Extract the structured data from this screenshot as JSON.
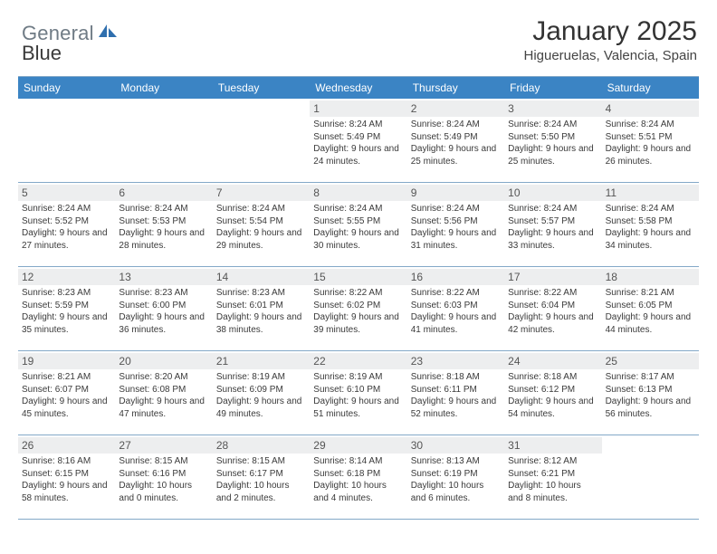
{
  "logo": {
    "part1": "General",
    "part2": "Blue"
  },
  "title": {
    "month": "January 2025",
    "location": "Higueruelas, Valencia, Spain"
  },
  "colors": {
    "header_blue": "#3b84c4",
    "divider": "#83a8c8",
    "daynum_bg": "#edeeef",
    "page_bg": "#ffffff",
    "logo_gray": "#6f7b85",
    "text": "#3a3a3a"
  },
  "calendar": {
    "day_names": [
      "Sunday",
      "Monday",
      "Tuesday",
      "Wednesday",
      "Thursday",
      "Friday",
      "Saturday"
    ],
    "first_weekday_index": 3,
    "days": [
      {
        "n": 1,
        "sunrise": "8:24 AM",
        "sunset": "5:49 PM",
        "daylight": "9 hours and 24 minutes."
      },
      {
        "n": 2,
        "sunrise": "8:24 AM",
        "sunset": "5:49 PM",
        "daylight": "9 hours and 25 minutes."
      },
      {
        "n": 3,
        "sunrise": "8:24 AM",
        "sunset": "5:50 PM",
        "daylight": "9 hours and 25 minutes."
      },
      {
        "n": 4,
        "sunrise": "8:24 AM",
        "sunset": "5:51 PM",
        "daylight": "9 hours and 26 minutes."
      },
      {
        "n": 5,
        "sunrise": "8:24 AM",
        "sunset": "5:52 PM",
        "daylight": "9 hours and 27 minutes."
      },
      {
        "n": 6,
        "sunrise": "8:24 AM",
        "sunset": "5:53 PM",
        "daylight": "9 hours and 28 minutes."
      },
      {
        "n": 7,
        "sunrise": "8:24 AM",
        "sunset": "5:54 PM",
        "daylight": "9 hours and 29 minutes."
      },
      {
        "n": 8,
        "sunrise": "8:24 AM",
        "sunset": "5:55 PM",
        "daylight": "9 hours and 30 minutes."
      },
      {
        "n": 9,
        "sunrise": "8:24 AM",
        "sunset": "5:56 PM",
        "daylight": "9 hours and 31 minutes."
      },
      {
        "n": 10,
        "sunrise": "8:24 AM",
        "sunset": "5:57 PM",
        "daylight": "9 hours and 33 minutes."
      },
      {
        "n": 11,
        "sunrise": "8:24 AM",
        "sunset": "5:58 PM",
        "daylight": "9 hours and 34 minutes."
      },
      {
        "n": 12,
        "sunrise": "8:23 AM",
        "sunset": "5:59 PM",
        "daylight": "9 hours and 35 minutes."
      },
      {
        "n": 13,
        "sunrise": "8:23 AM",
        "sunset": "6:00 PM",
        "daylight": "9 hours and 36 minutes."
      },
      {
        "n": 14,
        "sunrise": "8:23 AM",
        "sunset": "6:01 PM",
        "daylight": "9 hours and 38 minutes."
      },
      {
        "n": 15,
        "sunrise": "8:22 AM",
        "sunset": "6:02 PM",
        "daylight": "9 hours and 39 minutes."
      },
      {
        "n": 16,
        "sunrise": "8:22 AM",
        "sunset": "6:03 PM",
        "daylight": "9 hours and 41 minutes."
      },
      {
        "n": 17,
        "sunrise": "8:22 AM",
        "sunset": "6:04 PM",
        "daylight": "9 hours and 42 minutes."
      },
      {
        "n": 18,
        "sunrise": "8:21 AM",
        "sunset": "6:05 PM",
        "daylight": "9 hours and 44 minutes."
      },
      {
        "n": 19,
        "sunrise": "8:21 AM",
        "sunset": "6:07 PM",
        "daylight": "9 hours and 45 minutes."
      },
      {
        "n": 20,
        "sunrise": "8:20 AM",
        "sunset": "6:08 PM",
        "daylight": "9 hours and 47 minutes."
      },
      {
        "n": 21,
        "sunrise": "8:19 AM",
        "sunset": "6:09 PM",
        "daylight": "9 hours and 49 minutes."
      },
      {
        "n": 22,
        "sunrise": "8:19 AM",
        "sunset": "6:10 PM",
        "daylight": "9 hours and 51 minutes."
      },
      {
        "n": 23,
        "sunrise": "8:18 AM",
        "sunset": "6:11 PM",
        "daylight": "9 hours and 52 minutes."
      },
      {
        "n": 24,
        "sunrise": "8:18 AM",
        "sunset": "6:12 PM",
        "daylight": "9 hours and 54 minutes."
      },
      {
        "n": 25,
        "sunrise": "8:17 AM",
        "sunset": "6:13 PM",
        "daylight": "9 hours and 56 minutes."
      },
      {
        "n": 26,
        "sunrise": "8:16 AM",
        "sunset": "6:15 PM",
        "daylight": "9 hours and 58 minutes."
      },
      {
        "n": 27,
        "sunrise": "8:15 AM",
        "sunset": "6:16 PM",
        "daylight": "10 hours and 0 minutes."
      },
      {
        "n": 28,
        "sunrise": "8:15 AM",
        "sunset": "6:17 PM",
        "daylight": "10 hours and 2 minutes."
      },
      {
        "n": 29,
        "sunrise": "8:14 AM",
        "sunset": "6:18 PM",
        "daylight": "10 hours and 4 minutes."
      },
      {
        "n": 30,
        "sunrise": "8:13 AM",
        "sunset": "6:19 PM",
        "daylight": "10 hours and 6 minutes."
      },
      {
        "n": 31,
        "sunrise": "8:12 AM",
        "sunset": "6:21 PM",
        "daylight": "10 hours and 8 minutes."
      }
    ],
    "labels": {
      "sunrise_prefix": "Sunrise: ",
      "sunset_prefix": "Sunset: ",
      "daylight_prefix": "Daylight: "
    }
  }
}
